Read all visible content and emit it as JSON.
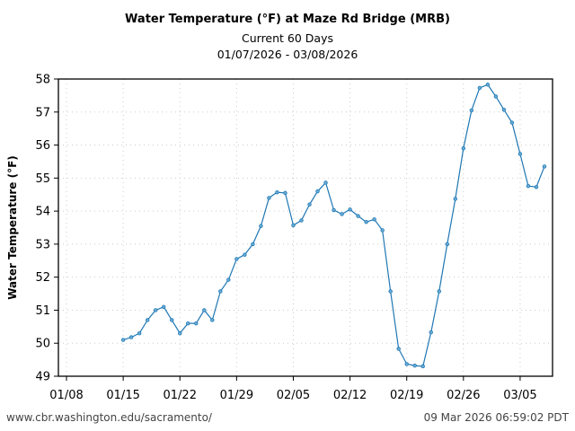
{
  "chart_data": {
    "type": "line",
    "title": "Water Temperature (°F) at Maze Rd Bridge (MRB)",
    "subtitle": "Current 60 Days",
    "date_range": "01/07/2026 - 03/08/2026",
    "xlabel": "",
    "ylabel": "Water Temperature (°F)",
    "ylim": [
      49,
      58
    ],
    "xlim": [
      "2026-01-07",
      "2026-03-09"
    ],
    "yticks": [
      "49",
      "50",
      "51",
      "52",
      "53",
      "54",
      "55",
      "56",
      "57",
      "58"
    ],
    "xticks": [
      {
        "date": "2026-01-08",
        "label": "01/08"
      },
      {
        "date": "2026-01-15",
        "label": "01/15"
      },
      {
        "date": "2026-01-22",
        "label": "01/22"
      },
      {
        "date": "2026-01-29",
        "label": "01/29"
      },
      {
        "date": "2026-02-05",
        "label": "02/05"
      },
      {
        "date": "2026-02-12",
        "label": "02/12"
      },
      {
        "date": "2026-02-19",
        "label": "02/19"
      },
      {
        "date": "2026-02-26",
        "label": "02/26"
      },
      {
        "date": "2026-03-05",
        "label": "03/05"
      }
    ],
    "grid": true,
    "line_color": "#1f77b4",
    "start_date": "2026-01-15",
    "x": [
      "2026-01-15",
      "2026-01-16",
      "2026-01-17",
      "2026-01-18",
      "2026-01-19",
      "2026-01-20",
      "2026-01-21",
      "2026-01-22",
      "2026-01-23",
      "2026-01-24",
      "2026-01-25",
      "2026-01-26",
      "2026-01-27",
      "2026-01-28",
      "2026-01-29",
      "2026-01-30",
      "2026-01-31",
      "2026-02-01",
      "2026-02-02",
      "2026-02-03",
      "2026-02-04",
      "2026-02-05",
      "2026-02-06",
      "2026-02-07",
      "2026-02-08",
      "2026-02-09",
      "2026-02-10",
      "2026-02-11",
      "2026-02-12",
      "2026-02-13",
      "2026-02-14",
      "2026-02-15",
      "2026-02-16",
      "2026-02-17",
      "2026-02-18",
      "2026-02-19",
      "2026-02-20",
      "2026-02-21",
      "2026-02-22",
      "2026-02-23",
      "2026-02-24",
      "2026-02-25",
      "2026-02-26",
      "2026-02-27",
      "2026-02-28",
      "2026-03-01",
      "2026-03-02",
      "2026-03-03",
      "2026-03-04",
      "2026-03-05",
      "2026-03-06",
      "2026-03-07",
      "2026-03-08"
    ],
    "values": [
      50.1,
      50.18,
      50.3,
      50.7,
      51.0,
      51.1,
      50.7,
      50.3,
      50.6,
      50.6,
      51.0,
      50.7,
      51.57,
      51.92,
      52.55,
      52.68,
      53.0,
      53.55,
      54.4,
      54.57,
      54.55,
      53.57,
      53.72,
      54.2,
      54.6,
      54.86,
      54.03,
      53.91,
      54.05,
      53.85,
      53.67,
      53.75,
      53.42,
      51.57,
      49.83,
      49.37,
      49.32,
      49.3,
      50.33,
      51.57,
      53.0,
      54.37,
      55.9,
      57.05,
      57.73,
      57.83,
      57.47,
      57.07,
      56.68,
      55.73,
      54.76,
      54.73,
      55.35
    ]
  },
  "footer": {
    "url": "www.cbr.washington.edu/sacramento/",
    "timestamp": "09 Mar 2026 06:59:02 PDT"
  }
}
